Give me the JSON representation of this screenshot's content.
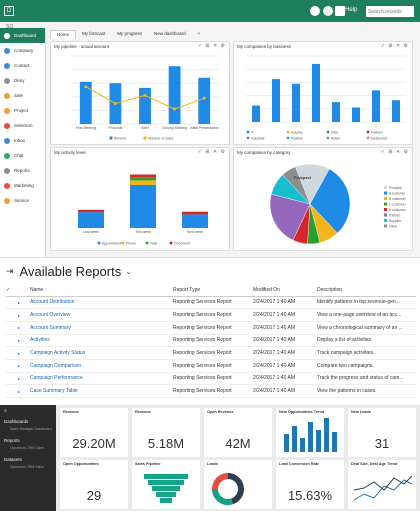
{
  "crm": {
    "brand": "D",
    "help": "Help",
    "search_placeholder": "Search records",
    "breadcrumb": "SO",
    "nav": [
      {
        "label": "Dashboard",
        "color": "#ffffff",
        "active": true
      },
      {
        "label": "Company",
        "color": "#3b8bd6"
      },
      {
        "label": "Contact",
        "color": "#3b8bd6"
      },
      {
        "label": "Diary",
        "color": "#8e8e8e"
      },
      {
        "label": "Sale",
        "color": "#f0a030"
      },
      {
        "label": "Project",
        "color": "#f0a030"
      },
      {
        "label": "Selection",
        "color": "#e74c3c"
      },
      {
        "label": "Inbox",
        "color": "#3b8bd6"
      },
      {
        "label": "Chat",
        "color": "#27ae60"
      },
      {
        "label": "Reports",
        "color": "#8e8e8e"
      },
      {
        "label": "Marketing",
        "color": "#e74c3c"
      },
      {
        "label": "Service",
        "color": "#f0a030"
      }
    ],
    "tabs": [
      "Home",
      "My forecast",
      "My progress",
      "New dashboard",
      "+"
    ],
    "cards": {
      "pipeline_title": "My pipeline - actual amount",
      "companies_title": "My companies by business",
      "activity_title": "My activity level",
      "category_title": "My companies by category"
    }
  },
  "chart_data": [
    {
      "type": "bar",
      "title": "My pipeline - actual amount",
      "categories": [
        "First Meeting",
        "Proposal",
        "Brief",
        "Closing Meeting",
        "Initial Presentation"
      ],
      "series": [
        {
          "name": "Amount",
          "type": "bar",
          "values": [
            62,
            60,
            53,
            85,
            68
          ],
          "color": "#1f8be6"
        },
        {
          "name": "Number of sales",
          "type": "line",
          "values": [
            55,
            30,
            42,
            22,
            38
          ],
          "color": "#f2b31b"
        }
      ],
      "ylim": [
        0,
        100
      ]
    },
    {
      "type": "bar",
      "title": "My companies by business",
      "categories": [
        "IT",
        "Industry",
        "Data",
        "Fashion",
        "Industrial",
        "Pipeline",
        "Retail",
        "Electronics"
      ],
      "values": [
        25,
        65,
        58,
        88,
        30,
        22,
        48,
        33
      ],
      "ylim": [
        0,
        100
      ]
    },
    {
      "type": "bar",
      "title": "My activity level",
      "categories": [
        "Last week",
        "This week",
        "Next week"
      ],
      "series": [
        {
          "name": "Appointment",
          "values": [
            35,
            95,
            30
          ],
          "color": "#1f8be6"
        },
        {
          "name": "Phone",
          "values": [
            0,
            10,
            0
          ],
          "color": "#f2b31b"
        },
        {
          "name": "Task",
          "values": [
            0,
            7,
            0
          ],
          "color": "#2ca02c"
        },
        {
          "name": "Document",
          "values": [
            5,
            6,
            6
          ],
          "color": "#d62728"
        }
      ],
      "ylim": [
        0,
        150
      ]
    },
    {
      "type": "pie",
      "title": "My companies by category",
      "labels": [
        "Prospect",
        "A customer",
        "B customer",
        "C customer",
        "D customer",
        "Partner",
        "Supplier",
        "Other"
      ],
      "values": [
        14,
        30,
        8,
        5,
        6,
        22,
        9,
        6
      ],
      "colors": [
        "#cfd8dc",
        "#1f8be6",
        "#f2b31b",
        "#2ca02c",
        "#d62728",
        "#9467bd",
        "#17becf",
        "#8c8c8c"
      ]
    }
  ],
  "reports": {
    "title": "Available Reports",
    "columns": [
      "Name",
      "Report Type",
      "Modified On",
      "Description"
    ],
    "rows": [
      {
        "name": "Account Distribution",
        "type": "Reporting Services Report",
        "modified": "2/24/2017 1:40 AM",
        "description": "Identify patterns in top revenue-gen..."
      },
      {
        "name": "Account Overview",
        "type": "Reporting Services Report",
        "modified": "2/24/2017 1:40 AM",
        "description": "View a one-page overview of an acc..."
      },
      {
        "name": "Account Summary",
        "type": "Reporting Services Report",
        "modified": "2/24/2017 1:40 AM",
        "description": "View a chronological summary of an ..."
      },
      {
        "name": "Activities",
        "type": "Reporting Services Report",
        "modified": "2/24/2017 1:40 AM",
        "description": "Display a list of activities."
      },
      {
        "name": "Campaign Activity Status",
        "type": "Reporting Services Report",
        "modified": "2/24/2017 1:40 AM",
        "description": "Track campaign activities."
      },
      {
        "name": "Campaign Comparison",
        "type": "Reporting Services Report",
        "modified": "2/24/2017 1:40 AM",
        "description": "Compare two campaigns."
      },
      {
        "name": "Campaign Performance",
        "type": "Reporting Services Report",
        "modified": "2/24/2017 1:40 AM",
        "description": "Track the progress and status of cam..."
      },
      {
        "name": "Case Summary Table",
        "type": "Reporting Services Report",
        "modified": "2/24/2017 1:40 AM",
        "description": "View the patterns in cases."
      }
    ]
  },
  "pbi": {
    "nav": [
      {
        "label": "Dashboards",
        "sub": "Sales Manager Dashboard"
      },
      {
        "label": "Reports",
        "sub": "Dynamics CRM Sales"
      },
      {
        "label": "Datasets",
        "sub": "Dynamics CRM Sales"
      }
    ],
    "kpis_top": [
      {
        "title": "Revenue",
        "value": "29.20M"
      },
      {
        "title": "Revenue",
        "value": "5.18M"
      },
      {
        "title": "Open Revenue",
        "value": "42M"
      },
      {
        "title": "New Opportunities Trend",
        "value": ""
      },
      {
        "title": "New Leads",
        "value": "31"
      }
    ],
    "kpis_bottom": [
      {
        "title": "Open Opportunities",
        "value": "29"
      },
      {
        "title": "Sales Pipeline",
        "value": ""
      },
      {
        "title": "Leads",
        "value": ""
      },
      {
        "title": "Lead Conversion Rate",
        "value": "15.63%"
      },
      {
        "title": "Deal Size, Deal Age Trend",
        "value": ""
      }
    ]
  }
}
